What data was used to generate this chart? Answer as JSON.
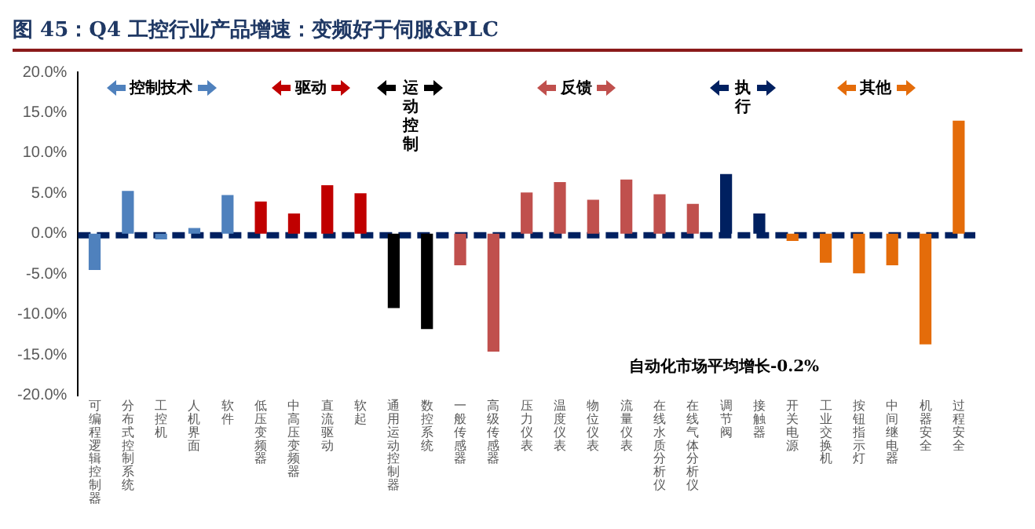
{
  "chart_data": {
    "type": "bar",
    "title": "图 45：Q4 工控行业产品增速：变频好于伺服&PLC",
    "categories": [
      "可编程逻辑控制器",
      "分布式控制系统",
      "工控机",
      "人机界面",
      "软件",
      "低压变频器",
      "中高压变频器",
      "直流驱动",
      "软起",
      "通用运动控制器",
      "数控系统",
      "一般传感器",
      "高级传感器",
      "压力仪表",
      "温度仪表",
      "物位仪表",
      "流量仪表",
      "在线水质分析仪",
      "在线气体分析仪",
      "调节阀",
      "接触器",
      "开关电源",
      "工业交换机",
      "按钮指示灯",
      "中间继电器",
      "机器安全",
      "过程安全"
    ],
    "series": [
      {
        "name": "控制技术",
        "color": "#4f81bd",
        "values": [
          -4.5,
          5.3,
          -0.7,
          0.7,
          4.8,
          null,
          null,
          null,
          null,
          null,
          null,
          null,
          null,
          null,
          null,
          null,
          null,
          null,
          null,
          null,
          null,
          null,
          null,
          null,
          null,
          null,
          null
        ]
      },
      {
        "name": "驱动",
        "color": "#c00000",
        "values": [
          null,
          null,
          null,
          null,
          null,
          4.0,
          2.5,
          6.0,
          5.0,
          null,
          null,
          null,
          null,
          null,
          null,
          null,
          null,
          null,
          null,
          null,
          null,
          null,
          null,
          null,
          null,
          null,
          null
        ]
      },
      {
        "name": "运动控制",
        "color": "#000000",
        "values": [
          null,
          null,
          null,
          null,
          null,
          null,
          null,
          null,
          null,
          -9.2,
          -11.8,
          null,
          null,
          null,
          null,
          null,
          null,
          null,
          null,
          null,
          null,
          null,
          null,
          null,
          null,
          null,
          null
        ]
      },
      {
        "name": "反馈",
        "color": "#c0504d",
        "values": [
          null,
          null,
          null,
          null,
          null,
          null,
          null,
          null,
          null,
          null,
          null,
          -3.9,
          -14.6,
          5.1,
          6.4,
          4.2,
          6.7,
          4.9,
          3.7,
          null,
          null,
          null,
          null,
          null,
          null,
          null,
          null
        ]
      },
      {
        "name": "执行",
        "color": "#002060",
        "values": [
          null,
          null,
          null,
          null,
          null,
          null,
          null,
          null,
          null,
          null,
          null,
          null,
          null,
          null,
          null,
          null,
          null,
          null,
          null,
          7.4,
          2.5,
          null,
          null,
          null,
          null,
          null,
          null
        ]
      },
      {
        "name": "其他",
        "color": "#e46c0a",
        "values": [
          null,
          null,
          null,
          null,
          null,
          null,
          null,
          null,
          null,
          null,
          null,
          null,
          null,
          null,
          null,
          null,
          null,
          null,
          null,
          null,
          null,
          -0.9,
          -3.6,
          -4.9,
          -3.9,
          -13.7,
          14.0
        ]
      }
    ],
    "ylim": [
      -20,
      20
    ],
    "yticks": [
      {
        "value": -20,
        "label": "-20.0%"
      },
      {
        "value": -15,
        "label": "-15.0%"
      },
      {
        "value": -10,
        "label": "-10.0%"
      },
      {
        "value": -5,
        "label": "-5.0%"
      },
      {
        "value": 0,
        "label": "0.0%"
      },
      {
        "value": 5,
        "label": "5.0%"
      },
      {
        "value": 10,
        "label": "10.0%"
      },
      {
        "value": 15,
        "label": "15.0%"
      },
      {
        "value": 20,
        "label": "20.0%"
      }
    ],
    "ref_lines": [
      {
        "axis": "y",
        "value": -0.2,
        "color": "#002060",
        "line_style": "dashed"
      }
    ],
    "annotations": [
      "自动化市场平均增长-0.2%"
    ],
    "legend": "top",
    "grid": false
  }
}
